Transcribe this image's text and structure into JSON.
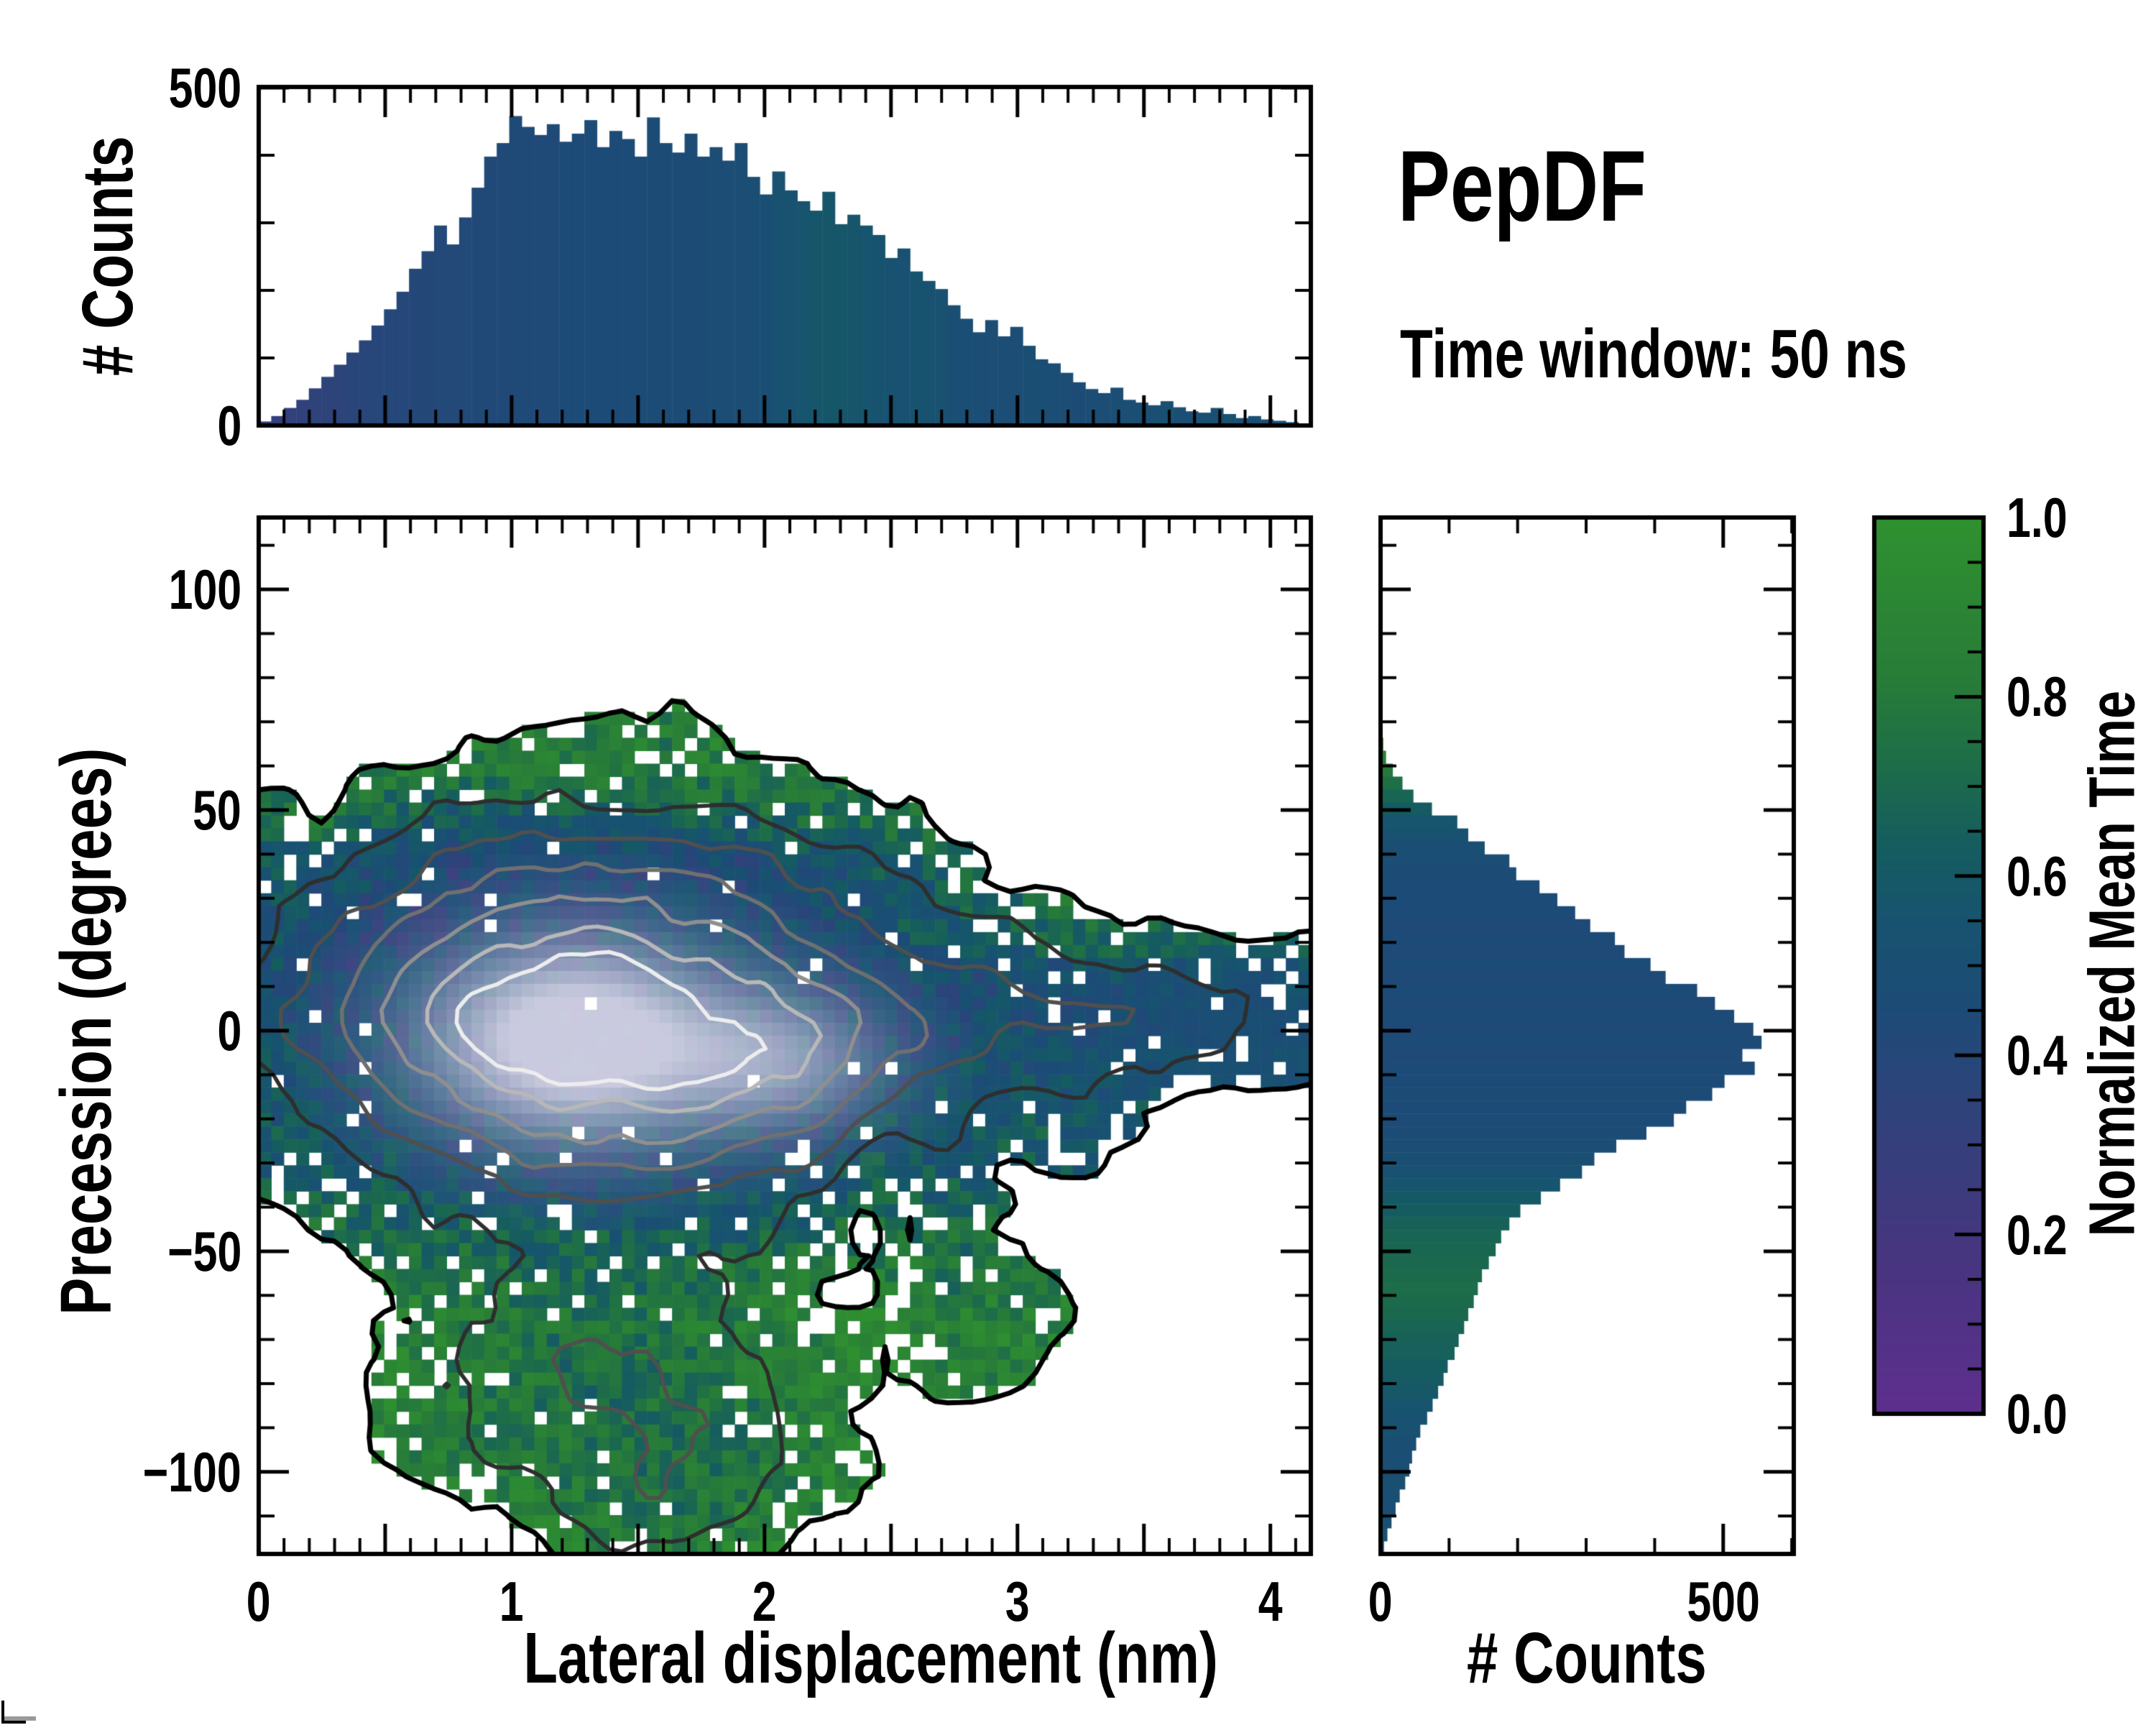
{
  "title": "PepDF",
  "subtitle": "Time window: 50 ns",
  "colors": {
    "background": "#ffffff",
    "axis": "#000000",
    "colormap_stops": [
      [
        0.0,
        "#5e2f8e"
      ],
      [
        0.18,
        "#46357f"
      ],
      [
        0.32,
        "#32417b"
      ],
      [
        0.45,
        "#1d4b77"
      ],
      [
        0.55,
        "#17536f"
      ],
      [
        0.63,
        "#155c60"
      ],
      [
        0.72,
        "#1d6c4a"
      ],
      [
        0.82,
        "#287c38"
      ],
      [
        1.0,
        "#2f9130"
      ]
    ],
    "peak_highlight": "#d8d5e8",
    "contour_colors": [
      "#000000",
      "#2e2e2e",
      "#4f4f4f",
      "#707070",
      "#8f8f8f",
      "#b8b8b8",
      "#ededed"
    ]
  },
  "layout_values": {
    "main_plot": {
      "x0": 360,
      "y0": 720,
      "x1": 1824,
      "y1": 2162
    },
    "top_plot": {
      "x0": 360,
      "y0": 121,
      "x1": 1824,
      "y1": 592
    },
    "right_plot": {
      "x0": 1921,
      "y0": 720,
      "x1": 2496,
      "y1": 2162
    },
    "colorbar": {
      "x0": 2608,
      "y0": 720,
      "x1": 2760,
      "y1": 1967
    }
  },
  "axes": {
    "main": {
      "xlabel": "Lateral displacement (nm)",
      "ylabel": "Precession (degrees)",
      "x_range": [
        0,
        4.16
      ],
      "y_range": [
        -118.6,
        116.3
      ],
      "x_tick_labels": [
        "0",
        "1",
        "2",
        "3",
        "4"
      ],
      "x_tick_values": [
        0,
        1,
        2,
        3,
        4
      ],
      "x_major_step": 0.5,
      "x_minor_step": 0.1,
      "y_tick_labels": [
        "100",
        "50",
        "0",
        "−50",
        "−100"
      ],
      "y_tick_values": [
        100,
        50,
        0,
        -50,
        -100
      ],
      "y_major_step": 50,
      "y_minor_step": 10
    },
    "top": {
      "ylabel": "# Counts",
      "y_range": [
        0,
        500
      ],
      "y_tick_labels": [
        "500",
        "0"
      ],
      "y_tick_values": [
        500,
        0
      ],
      "y_minor": [
        100,
        200,
        300,
        400
      ]
    },
    "right": {
      "xlabel": "# Counts",
      "x_range": [
        0,
        603
      ],
      "x_tick_labels": [
        "0",
        "500"
      ],
      "x_tick_values": [
        0,
        500
      ],
      "x_minor": [
        100,
        200,
        300,
        400,
        600
      ]
    },
    "colorbar": {
      "label": "Normalized Mean Time",
      "range": [
        0,
        1
      ],
      "tick_labels": [
        "1.0",
        "0.8",
        "0.6",
        "0.4",
        "0.2",
        "0.0"
      ],
      "tick_values": [
        1.0,
        0.8,
        0.6,
        0.4,
        0.2,
        0.0
      ],
      "minor_step": 0.05
    }
  },
  "chart_data": [
    {
      "type": "bar",
      "name": "top_marginal_histogram",
      "xlabel": "Lateral displacement (nm)",
      "ylabel": "# Counts",
      "x_start": 0,
      "x_step": 0.0495,
      "ylim": [
        0,
        500
      ],
      "values": [
        6,
        14,
        26,
        38,
        55,
        72,
        90,
        108,
        126,
        148,
        172,
        198,
        232,
        258,
        296,
        268,
        308,
        352,
        398,
        418,
        458,
        442,
        430,
        446,
        420,
        432,
        452,
        412,
        436,
        424,
        398,
        456,
        418,
        404,
        432,
        398,
        412,
        392,
        418,
        368,
        342,
        376,
        348,
        332,
        318,
        346,
        298,
        312,
        296,
        282,
        248,
        262,
        228,
        214,
        202,
        178,
        158,
        138,
        156,
        132,
        146,
        118,
        98,
        92,
        78,
        64,
        54,
        48,
        56,
        38,
        34,
        30,
        36,
        27,
        21,
        19,
        26,
        17,
        11,
        14,
        9,
        7,
        5,
        3
      ],
      "bar_color_by_mean_time": [
        0.3,
        0.31,
        0.32,
        0.33,
        0.34,
        0.35,
        0.36,
        0.37,
        0.38,
        0.39,
        0.4,
        0.4,
        0.41,
        0.41,
        0.42,
        0.42,
        0.42,
        0.43,
        0.43,
        0.43,
        0.44,
        0.44,
        0.44,
        0.44,
        0.45,
        0.45,
        0.45,
        0.45,
        0.45,
        0.45,
        0.46,
        0.46,
        0.46,
        0.46,
        0.46,
        0.46,
        0.47,
        0.47,
        0.48,
        0.49,
        0.5,
        0.52,
        0.54,
        0.56,
        0.57,
        0.58,
        0.58,
        0.57,
        0.56,
        0.55,
        0.54,
        0.53,
        0.55,
        0.54,
        0.52,
        0.5,
        0.49,
        0.48,
        0.47,
        0.48,
        0.47,
        0.5,
        0.49,
        0.48,
        0.47,
        0.46,
        0.47,
        0.48,
        0.49,
        0.5,
        0.49,
        0.5,
        0.51,
        0.5,
        0.49,
        0.5,
        0.51,
        0.52,
        0.5,
        0.49,
        0.5,
        0.51,
        0.5,
        0.49
      ]
    },
    {
      "type": "bar",
      "name": "right_marginal_histogram",
      "xlabel": "# Counts",
      "ylabel": "Precession (degrees)",
      "y_start": 116.3,
      "y_step": -2.936,
      "xlim": [
        0,
        603
      ],
      "values": [
        0,
        0,
        0,
        0,
        0,
        0,
        0,
        0,
        0,
        0,
        0,
        0,
        0,
        0,
        0,
        0,
        0,
        4,
        8,
        18,
        32,
        48,
        75,
        112,
        128,
        152,
        188,
        198,
        232,
        258,
        284,
        306,
        342,
        356,
        394,
        416,
        462,
        488,
        516,
        544,
        556,
        528,
        546,
        502,
        484,
        446,
        428,
        388,
        344,
        312,
        294,
        262,
        234,
        204,
        188,
        176,
        168,
        158,
        148,
        142,
        136,
        128,
        122,
        114,
        108,
        98,
        92,
        84,
        76,
        68,
        58,
        52,
        46,
        42,
        36,
        28,
        22,
        16,
        10,
        5
      ],
      "bar_color_by_mean_time": [
        0.5,
        0.5,
        0.5,
        0.5,
        0.5,
        0.5,
        0.5,
        0.5,
        0.5,
        0.5,
        0.5,
        0.5,
        0.5,
        0.5,
        0.5,
        0.5,
        0.5,
        0.88,
        0.85,
        0.8,
        0.74,
        0.68,
        0.62,
        0.56,
        0.52,
        0.5,
        0.48,
        0.46,
        0.45,
        0.45,
        0.45,
        0.44,
        0.45,
        0.44,
        0.45,
        0.44,
        0.45,
        0.44,
        0.45,
        0.44,
        0.45,
        0.44,
        0.45,
        0.45,
        0.46,
        0.45,
        0.45,
        0.46,
        0.48,
        0.5,
        0.53,
        0.56,
        0.6,
        0.63,
        0.66,
        0.68,
        0.69,
        0.7,
        0.71,
        0.72,
        0.71,
        0.7,
        0.68,
        0.66,
        0.65,
        0.63,
        0.61,
        0.59,
        0.56,
        0.54,
        0.52,
        0.5,
        0.49,
        0.5,
        0.51,
        0.5,
        0.49,
        0.51,
        0.52,
        0.5
      ]
    },
    {
      "type": "heatmap",
      "name": "main_2d_histogram",
      "description": "2D histogram of precession angle vs lateral displacement; cell color = normalized mean time (purple 0 - blue 0.45 - green 1); grayscale density contours from black (outer) to white (peak); white cells = empty bins",
      "x_range": [
        0,
        4.16
      ],
      "y_range": [
        -118.6,
        116.3
      ],
      "value_label": "Normalized Mean Time",
      "value_range": [
        0,
        1
      ],
      "grid": {
        "cols": 84,
        "rows": 80
      },
      "density_peak": {
        "x": 1.2,
        "y": -3
      },
      "occupied_extent": {
        "x": [
          0,
          4.16
        ],
        "y": [
          -117,
          66
        ]
      },
      "density_lobes": [
        {
          "cx": 1.35,
          "sx": 1.02,
          "cy": 8,
          "sy": 33,
          "amp": 1.05
        },
        {
          "cx": 1.2,
          "sx": 0.5,
          "cy": -2,
          "sy": 17,
          "amp": 0.55
        },
        {
          "cx": 2.05,
          "sx": 0.38,
          "cy": -6,
          "sy": 13,
          "amp": 0.33
        },
        {
          "cx": 3.45,
          "sx": 0.62,
          "cy": 2,
          "sy": 17,
          "amp": 0.4
        },
        {
          "cx": 1.35,
          "sx": 0.62,
          "cy": -78,
          "sy": 26,
          "amp": 0.5
        },
        {
          "cx": 1.7,
          "sx": 0.5,
          "cy": -106,
          "sy": 16,
          "amp": 0.3
        },
        {
          "cx": 2.85,
          "sx": 0.35,
          "cy": -65,
          "sy": 14,
          "amp": 0.28
        }
      ],
      "density_norm": 1.55,
      "occupancy_threshold": 0.14,
      "contour_levels": [
        0.14,
        0.26,
        0.38,
        0.5,
        0.62,
        0.75,
        0.86
      ],
      "noise_amp": 0.085,
      "seed": 7
    }
  ]
}
